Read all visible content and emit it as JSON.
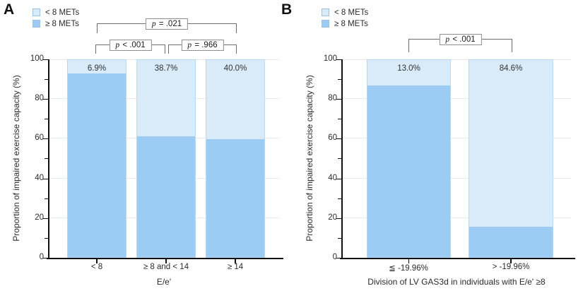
{
  "chart_data": [
    {
      "panel_label": "A",
      "type": "bar",
      "stacking": "percent",
      "categories": [
        "< 8",
        "≥ 8 and < 14",
        "≥ 14"
      ],
      "series": [
        {
          "name": "< 8 METs",
          "color": "#d9eaf8",
          "values": [
            6.9,
            38.7,
            40.0
          ]
        },
        {
          "name": "≥ 8 METs",
          "color": "#9ccbf4",
          "values": [
            93.1,
            61.3,
            60.0
          ]
        }
      ],
      "bar_labels": [
        "6.9%",
        "38.7%",
        "40.0%"
      ],
      "xlabel": "E/e'",
      "ylabel": "Proportion of impaired exercise capacity (%)",
      "ylim": [
        0,
        100
      ],
      "yticks": [
        0,
        20,
        40,
        60,
        80,
        100
      ],
      "yticks_minor": [
        10,
        30,
        50,
        70,
        90
      ],
      "grid": "horizontal",
      "legend_position": "top-left",
      "comparisons": [
        {
          "label": "p = .021",
          "between": [
            "< 8",
            "≥ 14"
          ]
        },
        {
          "label": "p < .001",
          "between": [
            "< 8",
            "≥ 8 and < 14"
          ]
        },
        {
          "label": "p = .966",
          "between": [
            "≥ 8 and < 14",
            "≥ 14"
          ]
        }
      ]
    },
    {
      "panel_label": "B",
      "type": "bar",
      "stacking": "percent",
      "categories": [
        "≦ -19.96%",
        "> -19.96%"
      ],
      "series": [
        {
          "name": "< 8 METs",
          "color": "#d9eaf8",
          "values": [
            13.0,
            84.6
          ]
        },
        {
          "name": "≥ 8 METs",
          "color": "#9ccbf4",
          "values": [
            87.0,
            15.4
          ]
        }
      ],
      "bar_labels": [
        "13.0%",
        "84.6%"
      ],
      "xlabel": "Division of LV GAS3d in individuals with E/e' ≥8",
      "ylabel": "Proportion of impaired exercise capacity (%)",
      "ylim": [
        0,
        100
      ],
      "yticks": [
        0,
        20,
        40,
        60,
        80,
        100
      ],
      "yticks_minor": [
        10,
        30,
        50,
        70,
        90
      ],
      "grid": "horizontal",
      "legend_position": "top-left",
      "comparisons": [
        {
          "label": "p < .001",
          "between": [
            "≦ -19.96%",
            "> -19.96%"
          ]
        }
      ]
    }
  ]
}
